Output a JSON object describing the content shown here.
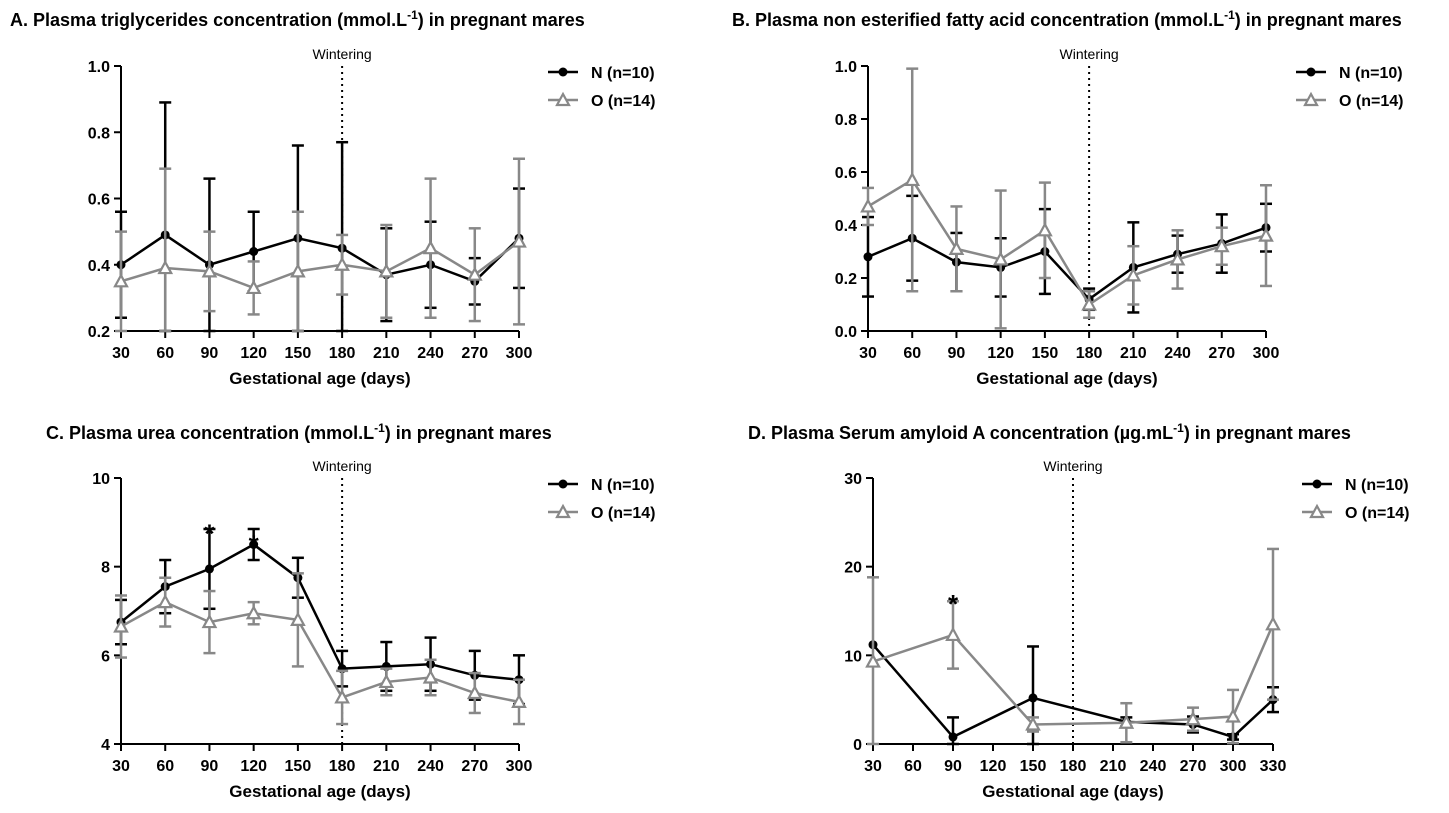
{
  "chart_data": [
    {
      "type": "line",
      "panel_label": "A.",
      "title": "Plasma triglycerides concentration (mmol.L",
      "title_sup": "-1",
      "title_after": ") in pregnant mares",
      "xlabel": "Gestational age (days)",
      "ylabel": "",
      "xlim": [
        30,
        300
      ],
      "ylim": [
        0.2,
        1.0
      ],
      "xticks": [
        30,
        60,
        90,
        120,
        150,
        180,
        210,
        240,
        270,
        300
      ],
      "yticks": [
        "0.2",
        "0.4",
        "0.6",
        "0.8",
        "1.0"
      ],
      "vline": {
        "x": 180,
        "label": "Wintering"
      },
      "legend_position": "top-right",
      "series": [
        {
          "name": "N (n=10)",
          "color": "#000000",
          "marker": "circle",
          "x": [
            30,
            60,
            90,
            120,
            150,
            180,
            210,
            240,
            270,
            300
          ],
          "y": [
            0.4,
            0.49,
            0.4,
            0.44,
            0.48,
            0.45,
            0.37,
            0.4,
            0.35,
            0.48
          ],
          "err": [
            0.16,
            0.4,
            0.26,
            0.12,
            0.28,
            0.32,
            0.14,
            0.13,
            0.07,
            0.15
          ]
        },
        {
          "name": "O (n=14)",
          "color": "#888888",
          "marker": "triangle",
          "x": [
            30,
            60,
            90,
            120,
            150,
            180,
            210,
            240,
            270,
            300
          ],
          "y": [
            0.35,
            0.39,
            0.38,
            0.33,
            0.38,
            0.4,
            0.38,
            0.45,
            0.37,
            0.47
          ],
          "err": [
            0.15,
            0.3,
            0.12,
            0.08,
            0.18,
            0.09,
            0.14,
            0.21,
            0.14,
            0.25
          ]
        }
      ],
      "stars": []
    },
    {
      "type": "line",
      "panel_label": "B.",
      "title": "Plasma non esterified fatty acid concentration (mmol.L",
      "title_sup": "-1",
      "title_after": ") in pregnant mares",
      "xlabel": "Gestational age (days)",
      "ylabel": "",
      "xlim": [
        30,
        300
      ],
      "ylim": [
        0.0,
        1.0
      ],
      "xticks": [
        30,
        60,
        90,
        120,
        150,
        180,
        210,
        240,
        270,
        300
      ],
      "yticks": [
        "0.0",
        "0.2",
        "0.4",
        "0.6",
        "0.8",
        "1.0"
      ],
      "vline": {
        "x": 180,
        "label": "Wintering"
      },
      "legend_position": "top-right",
      "series": [
        {
          "name": "N (n=10)",
          "color": "#000000",
          "marker": "circle",
          "x": [
            30,
            60,
            90,
            120,
            150,
            180,
            210,
            240,
            270,
            300
          ],
          "y": [
            0.28,
            0.35,
            0.26,
            0.24,
            0.3,
            0.12,
            0.24,
            0.29,
            0.33,
            0.39
          ],
          "err": [
            0.15,
            0.16,
            0.11,
            0.11,
            0.16,
            0.04,
            0.17,
            0.07,
            0.11,
            0.09
          ]
        },
        {
          "name": "O (n=14)",
          "color": "#888888",
          "marker": "triangle",
          "x": [
            30,
            60,
            90,
            120,
            150,
            180,
            210,
            240,
            270,
            300
          ],
          "y": [
            0.47,
            0.57,
            0.31,
            0.27,
            0.38,
            0.1,
            0.21,
            0.27,
            0.32,
            0.36
          ],
          "err": [
            0.07,
            0.42,
            0.16,
            0.26,
            0.18,
            0.05,
            0.11,
            0.11,
            0.07,
            0.19
          ]
        }
      ],
      "stars": []
    },
    {
      "type": "line",
      "panel_label": "C.",
      "title": "Plasma urea concentration (mmol.L",
      "title_sup": "-1",
      "title_after": ") in pregnant mares",
      "xlabel": "Gestational age (days)",
      "ylabel": "",
      "xlim": [
        30,
        300
      ],
      "ylim": [
        4,
        10
      ],
      "xticks": [
        30,
        60,
        90,
        120,
        150,
        180,
        210,
        240,
        270,
        300
      ],
      "yticks": [
        "4",
        "6",
        "8",
        "10"
      ],
      "vline": {
        "x": 180,
        "label": "Wintering"
      },
      "legend_position": "top-right",
      "series": [
        {
          "name": "N (n=10)",
          "color": "#000000",
          "marker": "circle",
          "x": [
            30,
            60,
            90,
            120,
            150,
            180,
            210,
            240,
            270,
            300
          ],
          "y": [
            6.75,
            7.55,
            7.95,
            8.5,
            7.75,
            5.7,
            5.75,
            5.8,
            5.55,
            5.45
          ],
          "err": [
            0.5,
            0.6,
            0.9,
            0.35,
            0.45,
            0.4,
            0.55,
            0.6,
            0.55,
            0.55
          ]
        },
        {
          "name": "O (n=14)",
          "color": "#888888",
          "marker": "triangle",
          "x": [
            30,
            60,
            90,
            120,
            150,
            180,
            210,
            240,
            270,
            300
          ],
          "y": [
            6.65,
            7.2,
            6.75,
            6.95,
            6.8,
            5.05,
            5.4,
            5.5,
            5.15,
            4.95
          ],
          "err": [
            0.7,
            0.55,
            0.7,
            0.25,
            1.05,
            0.6,
            0.3,
            0.4,
            0.45,
            0.5
          ]
        }
      ],
      "stars": [
        {
          "x": 90,
          "y": 8.95,
          "text": "*"
        },
        {
          "x": 120,
          "y": 8.7,
          "text": "*"
        }
      ]
    },
    {
      "type": "line",
      "panel_label": "D.",
      "title": "Plasma Serum amyloid A concentration (µg.mL",
      "title_sup": "-1",
      "title_after": ") in pregnant mares",
      "xlabel": "Gestational age (days)",
      "ylabel": "",
      "xlim": [
        30,
        330
      ],
      "ylim": [
        0,
        30
      ],
      "xticks": [
        30,
        60,
        90,
        120,
        150,
        180,
        210,
        240,
        270,
        300,
        330
      ],
      "yticks": [
        "0",
        "10",
        "20",
        "30"
      ],
      "vline": {
        "x": 180,
        "label": "Wintering"
      },
      "legend_position": "top-right",
      "series": [
        {
          "name": "N (n=10)",
          "color": "#000000",
          "marker": "circle",
          "x": [
            30,
            90,
            150,
            220,
            270,
            300,
            330
          ],
          "y": [
            11.2,
            0.8,
            5.2,
            2.5,
            2.2,
            0.8,
            5.0
          ],
          "err": [
            0,
            2.2,
            5.8,
            0.5,
            0.9,
            0.3,
            1.4
          ]
        },
        {
          "name": "O (n=14)",
          "color": "#888888",
          "marker": "triangle",
          "x": [
            30,
            90,
            150,
            220,
            270,
            300,
            330
          ],
          "y": [
            9.3,
            12.3,
            2.2,
            2.4,
            2.8,
            3.1,
            13.5
          ],
          "err": [
            9.5,
            3.8,
            0.8,
            2.2,
            1.3,
            3.0,
            8.5
          ]
        }
      ],
      "stars": [
        {
          "x": 90,
          "y": 16.8,
          "text": "*"
        }
      ]
    }
  ]
}
